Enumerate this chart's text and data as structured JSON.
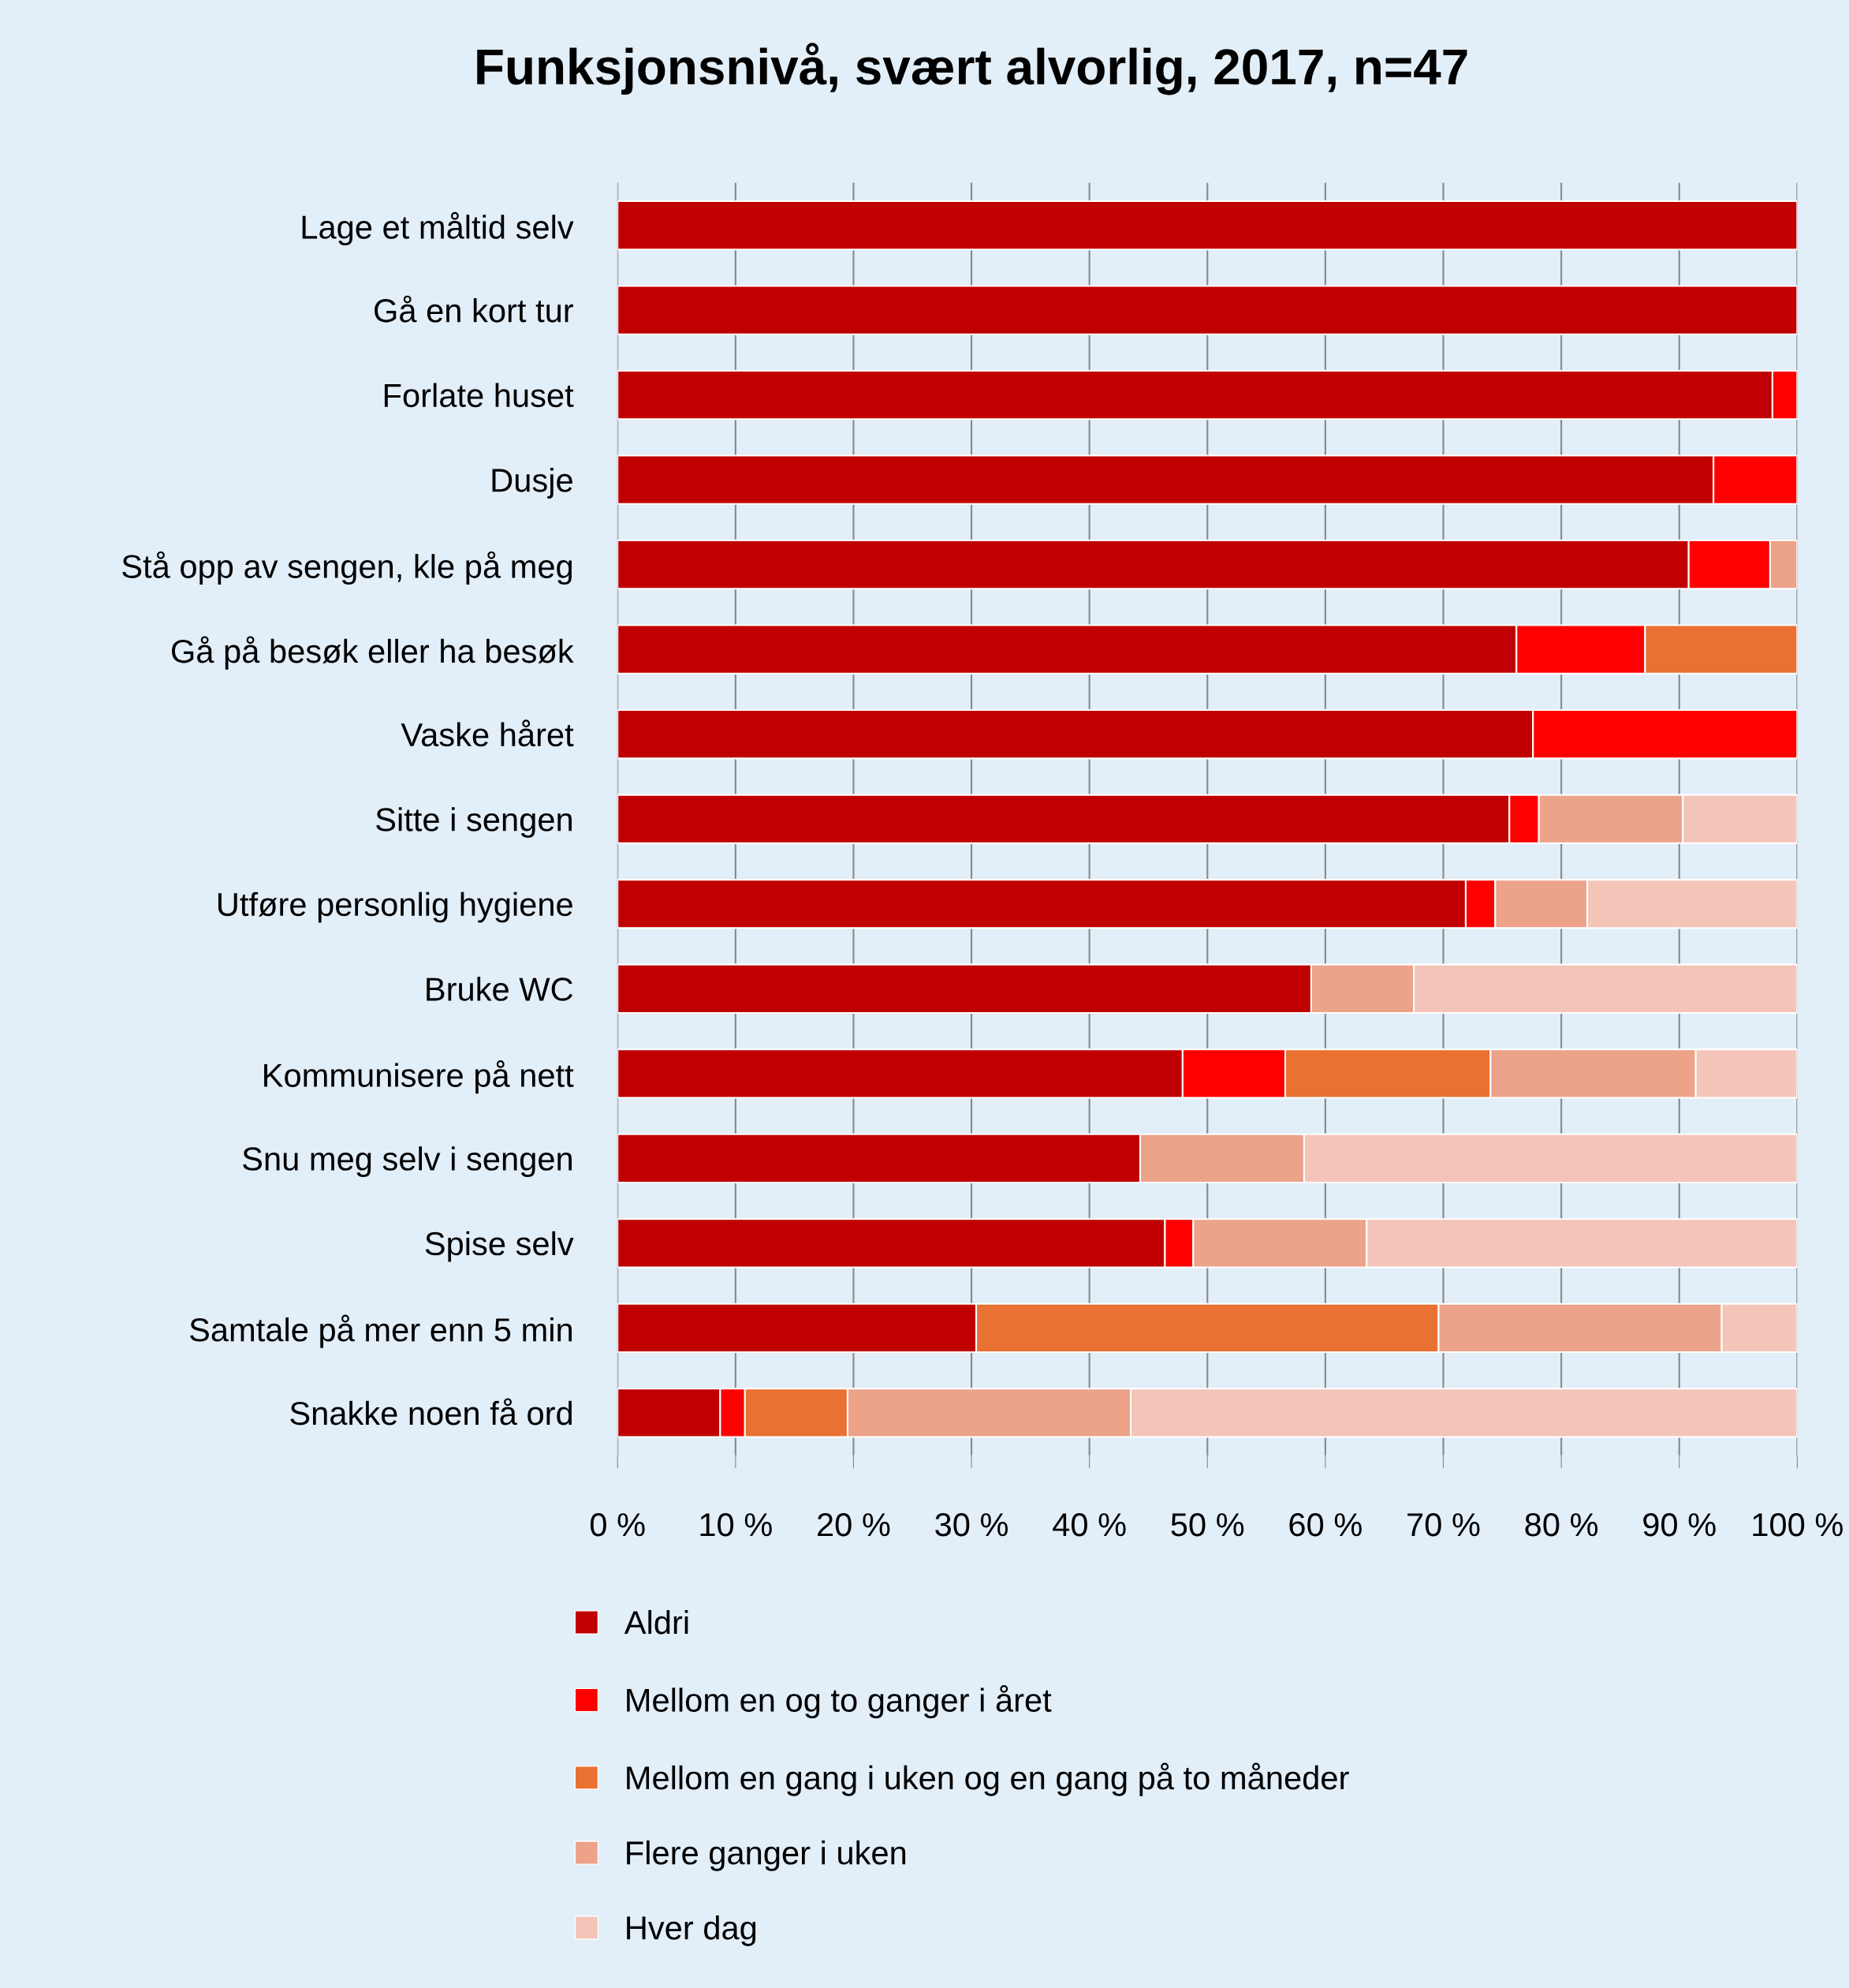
{
  "chart_data": {
    "type": "bar",
    "orientation": "horizontal",
    "stacked": true,
    "title": "Funksjonsnivå, svært alvorlig, 2017, n=47",
    "categories": [
      "Lage et måltid selv",
      "Gå en kort tur",
      "Forlate huset",
      "Dusje",
      "Stå opp av sengen, kle på meg",
      "Gå på besøk eller ha besøk",
      "Vaske håret",
      "Sitte i sengen",
      "Utføre personlig hygiene",
      "Bruke WC",
      "Kommunisere på nett",
      "Snu meg selv i sengen",
      "Spise selv",
      "Samtale på mer enn 5 min",
      "Snakke noen få ord"
    ],
    "series": [
      {
        "name": "Aldri",
        "color": "#c00000",
        "values": [
          100,
          100,
          97.9,
          92.9,
          90.8,
          76.2,
          77.6,
          75.6,
          71.9,
          58.8,
          47.9,
          44.3,
          46.4,
          30.4,
          8.7
        ]
      },
      {
        "name": "Mellom en og to ganger i året",
        "color": "#ff0000",
        "values": [
          0,
          0,
          2.1,
          7.1,
          6.9,
          10.9,
          22.4,
          2.5,
          2.5,
          0,
          8.7,
          0,
          2.4,
          0,
          2.1
        ]
      },
      {
        "name": "Mellom en gang i uken og en gang på to måneder",
        "color": "#e97132",
        "values": [
          0,
          0,
          0,
          0,
          0,
          12.9,
          0,
          0,
          0,
          0,
          17.4,
          0,
          0,
          39.2,
          8.7
        ]
      },
      {
        "name": "Flere ganger i uken",
        "color": "#eda28a",
        "values": [
          0,
          0,
          0,
          0,
          2.3,
          0,
          0,
          12.2,
          7.8,
          8.7,
          17.4,
          13.9,
          14.7,
          24.0,
          24.0
        ]
      },
      {
        "name": "Hver dag",
        "color": "#f3c5b8",
        "values": [
          0,
          0,
          0,
          0,
          0,
          0,
          0,
          9.7,
          17.8,
          32.5,
          8.6,
          41.8,
          36.5,
          6.4,
          56.5
        ]
      }
    ],
    "xlim": [
      0,
      100
    ],
    "xticks": [
      {
        "value": 0,
        "label": "0 %"
      },
      {
        "value": 10,
        "label": "10 %"
      },
      {
        "value": 20,
        "label": "20 %"
      },
      {
        "value": 30,
        "label": "30 %"
      },
      {
        "value": 40,
        "label": "40 %"
      },
      {
        "value": 50,
        "label": "50 %"
      },
      {
        "value": 60,
        "label": "60 %"
      },
      {
        "value": 70,
        "label": "70 %"
      },
      {
        "value": 80,
        "label": "80 %"
      },
      {
        "value": 90,
        "label": "90 %"
      },
      {
        "value": 100,
        "label": "100 %"
      }
    ],
    "grid": "x",
    "legend": "bottom"
  }
}
